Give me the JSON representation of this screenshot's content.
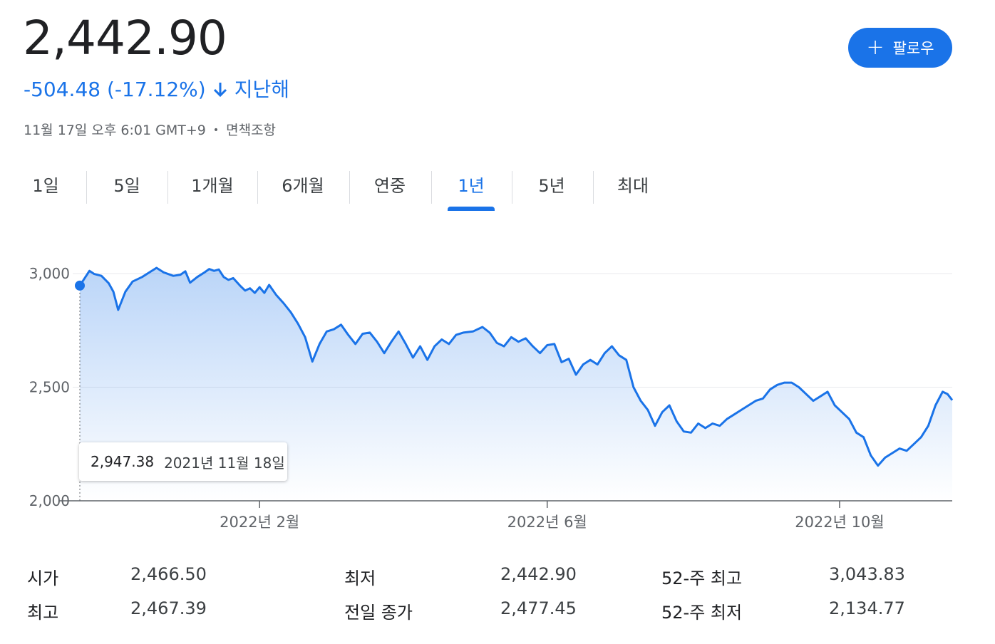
{
  "quote": {
    "price": "2,442.90",
    "change": "-504.48 (-17.12%)",
    "period": "지난해",
    "timestamp": "11월 17일 오후 6:01 GMT+9",
    "separator": "•",
    "disclaimer": "면책조항",
    "follow_label": "팔로우",
    "accent_color": "#1a73e8"
  },
  "tabs": [
    {
      "label": "1일",
      "active": false
    },
    {
      "label": "5일",
      "active": false
    },
    {
      "label": "1개월",
      "active": false
    },
    {
      "label": "6개월",
      "active": false
    },
    {
      "label": "연중",
      "active": false
    },
    {
      "label": "1년",
      "active": true
    },
    {
      "label": "5년",
      "active": false
    },
    {
      "label": "최대",
      "active": false
    }
  ],
  "tooltip": {
    "value": "2,947.38",
    "date": "2021년 11월 18일"
  },
  "chart_data": {
    "type": "area",
    "ylim": [
      2000,
      3000
    ],
    "yticks": [
      {
        "value": 2000,
        "label": "2,000"
      },
      {
        "value": 2500,
        "label": "2,500"
      },
      {
        "value": 3000,
        "label": "3,000"
      }
    ],
    "xticks": [
      {
        "x": "2022-02-01",
        "label": "2022년 2월"
      },
      {
        "x": "2022-06-01",
        "label": "2022년 6월"
      },
      {
        "x": "2022-10-01",
        "label": "2022년 10월"
      }
    ],
    "xlim": [
      "2021-11-18",
      "2022-11-17"
    ],
    "grid": true,
    "line_color": "#1a73e8",
    "series": [
      {
        "points": [
          [
            "2021-11-18",
            2947
          ],
          [
            "2021-11-22",
            3012
          ],
          [
            "2021-11-24",
            2998
          ],
          [
            "2021-11-27",
            2990
          ],
          [
            "2021-11-30",
            2958
          ],
          [
            "2021-12-02",
            2920
          ],
          [
            "2021-12-04",
            2840
          ],
          [
            "2021-12-07",
            2920
          ],
          [
            "2021-12-10",
            2965
          ],
          [
            "2021-12-14",
            2985
          ],
          [
            "2021-12-17",
            3005
          ],
          [
            "2021-12-20",
            3025
          ],
          [
            "2021-12-23",
            3005
          ],
          [
            "2021-12-27",
            2990
          ],
          [
            "2021-12-30",
            2995
          ],
          [
            "2022-01-01",
            3010
          ],
          [
            "2022-01-03",
            2960
          ],
          [
            "2022-01-06",
            2985
          ],
          [
            "2022-01-09",
            3005
          ],
          [
            "2022-01-11",
            3020
          ],
          [
            "2022-01-13",
            3012
          ],
          [
            "2022-01-15",
            3018
          ],
          [
            "2022-01-17",
            2985
          ],
          [
            "2022-01-19",
            2972
          ],
          [
            "2022-01-21",
            2980
          ],
          [
            "2022-01-24",
            2945
          ],
          [
            "2022-01-26",
            2925
          ],
          [
            "2022-01-28",
            2935
          ],
          [
            "2022-01-30",
            2915
          ],
          [
            "2022-02-01",
            2940
          ],
          [
            "2022-02-03",
            2915
          ],
          [
            "2022-02-05",
            2950
          ],
          [
            "2022-02-08",
            2905
          ],
          [
            "2022-02-11",
            2870
          ],
          [
            "2022-02-14",
            2830
          ],
          [
            "2022-02-17",
            2780
          ],
          [
            "2022-02-20",
            2720
          ],
          [
            "2022-02-23",
            2613
          ],
          [
            "2022-02-26",
            2690
          ],
          [
            "2022-03-01",
            2745
          ],
          [
            "2022-03-04",
            2755
          ],
          [
            "2022-03-07",
            2775
          ],
          [
            "2022-03-10",
            2730
          ],
          [
            "2022-03-13",
            2690
          ],
          [
            "2022-03-16",
            2735
          ],
          [
            "2022-03-19",
            2740
          ],
          [
            "2022-03-22",
            2700
          ],
          [
            "2022-03-25",
            2650
          ],
          [
            "2022-03-28",
            2700
          ],
          [
            "2022-03-31",
            2745
          ],
          [
            "2022-04-03",
            2690
          ],
          [
            "2022-04-06",
            2630
          ],
          [
            "2022-04-09",
            2680
          ],
          [
            "2022-04-12",
            2620
          ],
          [
            "2022-04-15",
            2680
          ],
          [
            "2022-04-18",
            2710
          ],
          [
            "2022-04-21",
            2690
          ],
          [
            "2022-04-24",
            2730
          ],
          [
            "2022-04-27",
            2740
          ],
          [
            "2022-05-01",
            2745
          ],
          [
            "2022-05-05",
            2765
          ],
          [
            "2022-05-08",
            2740
          ],
          [
            "2022-05-11",
            2695
          ],
          [
            "2022-05-14",
            2680
          ],
          [
            "2022-05-17",
            2720
          ],
          [
            "2022-05-20",
            2700
          ],
          [
            "2022-05-23",
            2715
          ],
          [
            "2022-05-26",
            2680
          ],
          [
            "2022-05-29",
            2650
          ],
          [
            "2022-06-01",
            2685
          ],
          [
            "2022-06-04",
            2690
          ],
          [
            "2022-06-07",
            2610
          ],
          [
            "2022-06-10",
            2625
          ],
          [
            "2022-06-13",
            2555
          ],
          [
            "2022-06-16",
            2600
          ],
          [
            "2022-06-19",
            2620
          ],
          [
            "2022-06-22",
            2600
          ],
          [
            "2022-06-25",
            2650
          ],
          [
            "2022-06-28",
            2680
          ],
          [
            "2022-07-01",
            2640
          ],
          [
            "2022-07-04",
            2620
          ],
          [
            "2022-07-07",
            2500
          ],
          [
            "2022-07-10",
            2440
          ],
          [
            "2022-07-13",
            2400
          ],
          [
            "2022-07-16",
            2330
          ],
          [
            "2022-07-19",
            2390
          ],
          [
            "2022-07-22",
            2420
          ],
          [
            "2022-07-25",
            2350
          ],
          [
            "2022-07-28",
            2305
          ],
          [
            "2022-07-31",
            2300
          ],
          [
            "2022-08-03",
            2340
          ],
          [
            "2022-08-06",
            2320
          ],
          [
            "2022-08-09",
            2340
          ],
          [
            "2022-08-12",
            2330
          ],
          [
            "2022-08-15",
            2360
          ],
          [
            "2022-08-18",
            2380
          ],
          [
            "2022-08-21",
            2400
          ],
          [
            "2022-08-24",
            2420
          ],
          [
            "2022-08-27",
            2440
          ],
          [
            "2022-08-30",
            2450
          ],
          [
            "2022-09-02",
            2490
          ],
          [
            "2022-09-05",
            2510
          ],
          [
            "2022-09-08",
            2520
          ],
          [
            "2022-09-11",
            2520
          ],
          [
            "2022-09-14",
            2500
          ],
          [
            "2022-09-17",
            2470
          ],
          [
            "2022-09-20",
            2440
          ],
          [
            "2022-09-23",
            2460
          ],
          [
            "2022-09-26",
            2480
          ],
          [
            "2022-09-29",
            2420
          ],
          [
            "2022-10-02",
            2390
          ],
          [
            "2022-10-05",
            2360
          ],
          [
            "2022-10-08",
            2300
          ],
          [
            "2022-10-11",
            2280
          ],
          [
            "2022-10-14",
            2200
          ],
          [
            "2022-10-17",
            2155
          ],
          [
            "2022-10-20",
            2190
          ],
          [
            "2022-10-23",
            2210
          ],
          [
            "2022-10-26",
            2230
          ],
          [
            "2022-10-29",
            2220
          ],
          [
            "2022-11-01",
            2250
          ],
          [
            "2022-11-04",
            2280
          ],
          [
            "2022-11-07",
            2330
          ],
          [
            "2022-11-10",
            2420
          ],
          [
            "2022-11-13",
            2480
          ],
          [
            "2022-11-15",
            2470
          ],
          [
            "2022-11-17",
            2443
          ]
        ]
      }
    ]
  },
  "stats": [
    {
      "label": "시가",
      "value": "2,466.50"
    },
    {
      "label": "최고",
      "value": "2,467.39"
    },
    {
      "label": "최저",
      "value": "2,442.90"
    },
    {
      "label": "전일 종가",
      "value": "2,477.45"
    },
    {
      "label": "52-주 최고",
      "value": "3,043.83"
    },
    {
      "label": "52-주 최저",
      "value": "2,134.77"
    }
  ]
}
